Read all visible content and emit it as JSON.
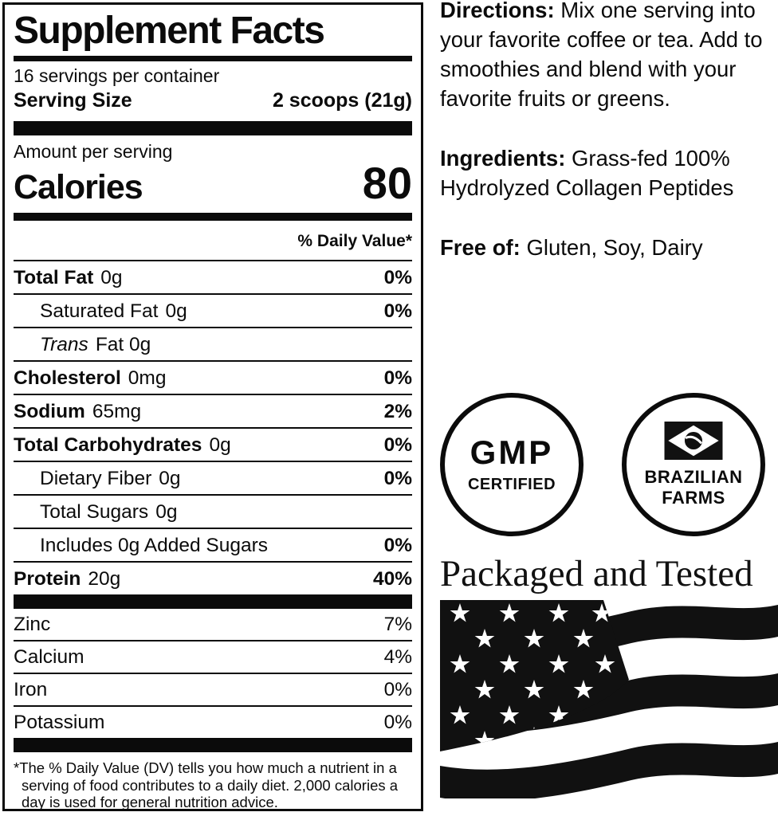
{
  "colors": {
    "ink": "#0b0b0b",
    "background": "#ffffff"
  },
  "panel": {
    "title": "Supplement Facts",
    "servings_per_container": "16 servings per container",
    "serving_size_label": "Serving Size",
    "serving_size_value": "2 scoops (21g)",
    "amount_per_serving_label": "Amount per serving",
    "calories_label": "Calories",
    "calories_value": "80",
    "daily_value_header": "% Daily Value*",
    "main_rows": [
      {
        "label": "Total Fat",
        "amount": "0g",
        "dv": "0%",
        "label_bold": true,
        "dv_bold": true,
        "indent": 0,
        "italic": false
      },
      {
        "label": "Saturated Fat",
        "amount": "0g",
        "dv": "0%",
        "label_bold": false,
        "dv_bold": true,
        "indent": 1,
        "italic": false
      },
      {
        "label": "Trans",
        "amount": "Fat 0g",
        "dv": "",
        "label_bold": false,
        "dv_bold": false,
        "indent": 1,
        "italic": true
      },
      {
        "label": "Cholesterol",
        "amount": "0mg",
        "dv": "0%",
        "label_bold": true,
        "dv_bold": true,
        "indent": 0,
        "italic": false
      },
      {
        "label": "Sodium",
        "amount": "65mg",
        "dv": "2%",
        "label_bold": true,
        "dv_bold": true,
        "indent": 0,
        "italic": false
      },
      {
        "label": "Total Carbohydrates",
        "amount": "0g",
        "dv": "0%",
        "label_bold": true,
        "dv_bold": true,
        "indent": 0,
        "italic": false
      },
      {
        "label": "Dietary Fiber",
        "amount": "0g",
        "dv": "0%",
        "label_bold": false,
        "dv_bold": true,
        "indent": 1,
        "italic": false
      },
      {
        "label": "Total Sugars",
        "amount": "0g",
        "dv": "",
        "label_bold": false,
        "dv_bold": false,
        "indent": 1,
        "italic": false
      },
      {
        "label": "Includes 0g Added Sugars",
        "amount": "",
        "dv": "0%",
        "label_bold": false,
        "dv_bold": true,
        "indent": 1,
        "italic": false
      },
      {
        "label": "Protein",
        "amount": "20g",
        "dv": "40%",
        "label_bold": true,
        "dv_bold": true,
        "indent": 0,
        "italic": false
      }
    ],
    "mineral_rows": [
      {
        "label": "Zinc",
        "amount": "",
        "dv": "7%",
        "label_bold": false,
        "dv_bold": false,
        "indent": 0,
        "italic": false
      },
      {
        "label": "Calcium",
        "amount": "",
        "dv": "4%",
        "label_bold": false,
        "dv_bold": false,
        "indent": 0,
        "italic": false
      },
      {
        "label": "Iron",
        "amount": "",
        "dv": "0%",
        "label_bold": false,
        "dv_bold": false,
        "indent": 0,
        "italic": false
      },
      {
        "label": "Potassium",
        "amount": "",
        "dv": "0%",
        "label_bold": false,
        "dv_bold": false,
        "indent": 0,
        "italic": false
      }
    ],
    "footnote": "*The % Daily Value (DV) tells you how much a nutrient in a serving of food contributes to a daily diet. 2,000 calories a day is used for general nutrition advice."
  },
  "info": {
    "directions_label": "Directions:",
    "directions_text": "Mix one serving into your favorite coffee or tea. Add to smoothies and blend with your favorite fruits or greens.",
    "ingredients_label": "Ingredients:",
    "ingredients_text": "Grass-fed 100% Hydrolyzed Collagen Peptides",
    "free_of_label": "Free of:",
    "free_of_text": "Gluten, Soy, Dairy"
  },
  "badges": {
    "gmp": {
      "line1": "GMP",
      "line2": "CERTIFIED",
      "icon": "gmp-seal-circle"
    },
    "brazil": {
      "line1": "BRAZILIAN",
      "line2": "FARMS",
      "icon": "brazil-flag-icon"
    }
  },
  "footer": {
    "packaged_text": "Packaged and Tested",
    "flag": "usa-flag-waving"
  }
}
